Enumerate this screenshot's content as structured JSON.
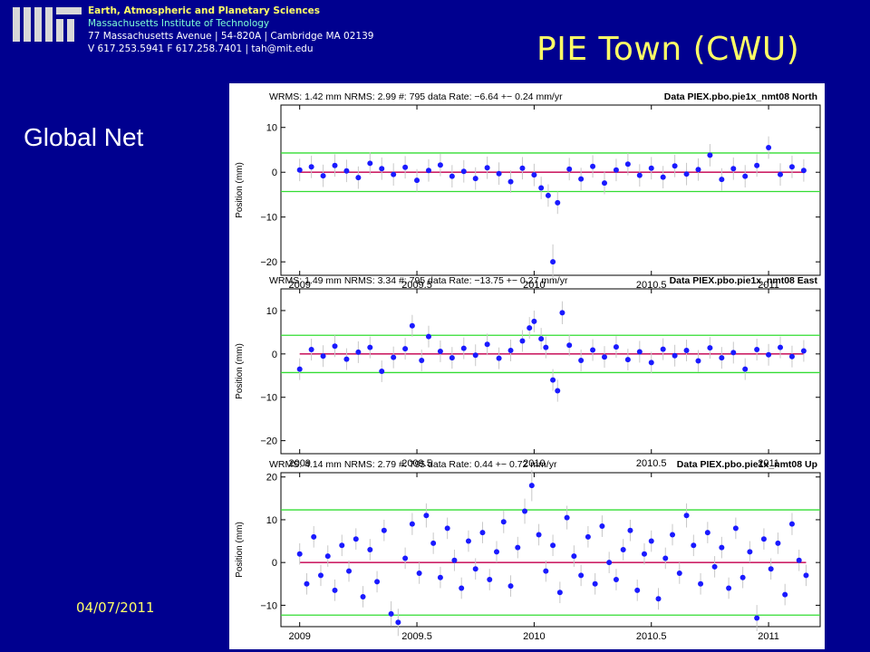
{
  "header": {
    "department": "Earth, Atmospheric and Planetary Sciences",
    "institute": "Massachusetts Institute of Technology",
    "address": "77 Massachusetts Avenue | 54-820A | Cambridge MA 02139",
    "contact": "V 617.253.5941 F 617.258.7401 | tah@mit.edu"
  },
  "slide": {
    "title": "PIE Town (CWU)",
    "subtitle": "Global Net",
    "date": "04/07/2011"
  },
  "colors": {
    "background": "#00008f",
    "title": "#ffff66",
    "points": "#1a1aff",
    "errorbars": "#c8c8c8",
    "bounds": "#33dd33",
    "fit": "#cc2266"
  },
  "chart_data": [
    {
      "type": "scatter",
      "header": "WRMS:   1.42 mm NRMS:  2.99 #:   795 data   Rate:    −6.64 +−    0.24 mm/yr",
      "label": "Data PIEX.pbo.pie1x_nmt08 North",
      "ylabel": "Position (mm)",
      "xlim": [
        2008.92,
        2011.22
      ],
      "ylim": [
        -23,
        15
      ],
      "xticks": [
        2009,
        2009.5,
        2010,
        2010.5,
        2011
      ],
      "xticklabels": [
        "2009",
        "2009.5",
        "2010",
        "2010.5",
        "2011"
      ],
      "yticks": [
        -20,
        -10,
        0,
        10
      ],
      "yticklabels": [
        "−20",
        "−10",
        "0",
        "10"
      ],
      "bounds": [
        -4.3,
        4.3
      ],
      "fit": [
        0,
        0
      ],
      "series": [
        {
          "x": [
            2009.0,
            2009.05,
            2009.1,
            2009.15,
            2009.2,
            2009.25,
            2009.3,
            2009.35,
            2009.4,
            2009.45,
            2009.5,
            2009.55,
            2009.6,
            2009.65,
            2009.7,
            2009.75,
            2009.8,
            2009.85,
            2009.9,
            2009.95,
            2010.0,
            2010.03,
            2010.06,
            2010.08,
            2010.1,
            2010.15,
            2010.2,
            2010.25,
            2010.3,
            2010.35,
            2010.4,
            2010.45,
            2010.5,
            2010.55,
            2010.6,
            2010.65,
            2010.7,
            2010.75,
            2010.8,
            2010.85,
            2010.9,
            2010.95,
            2011.0,
            2011.05,
            2011.1,
            2011.15
          ],
          "y": [
            0.5,
            1.2,
            -0.8,
            1.5,
            0.3,
            -1.2,
            2.0,
            0.8,
            -0.5,
            1.1,
            -1.8,
            0.4,
            1.6,
            -0.9,
            0.2,
            -1.4,
            1.0,
            -0.3,
            -2.1,
            0.9,
            -0.6,
            -3.5,
            -5.2,
            -20.0,
            -6.8,
            0.7,
            -1.5,
            1.3,
            -2.4,
            0.5,
            1.8,
            -0.7,
            0.9,
            -1.1,
            1.4,
            -0.4,
            0.6,
            3.8,
            -1.6,
            0.8,
            -0.9,
            1.5,
            5.5,
            -0.5,
            1.2,
            0.4
          ]
        }
      ]
    },
    {
      "type": "scatter",
      "header": "WRMS:   1.49 mm NRMS:  3.34 #:   795 data   Rate:   −13.75 +−    0.27 mm/yr",
      "label": "Data PIEX.pbo.pie1x_nmt08 East",
      "ylabel": "Position (mm)",
      "xlim": [
        2008.92,
        2011.22
      ],
      "ylim": [
        -23,
        15
      ],
      "xticks": [
        2009,
        2009.5,
        2010,
        2010.5,
        2011
      ],
      "xticklabels": [
        "2009",
        "2009.5",
        "2010",
        "2010.5",
        "2011"
      ],
      "yticks": [
        -20,
        -10,
        0,
        10
      ],
      "yticklabels": [
        "−20",
        "−10",
        "0",
        "10"
      ],
      "bounds": [
        -4.3,
        4.3
      ],
      "fit": [
        0,
        0
      ],
      "series": [
        {
          "x": [
            2009.0,
            2009.05,
            2009.1,
            2009.15,
            2009.2,
            2009.25,
            2009.3,
            2009.35,
            2009.4,
            2009.45,
            2009.48,
            2009.52,
            2009.55,
            2009.6,
            2009.65,
            2009.7,
            2009.75,
            2009.8,
            2009.85,
            2009.9,
            2009.95,
            2009.98,
            2010.0,
            2010.03,
            2010.05,
            2010.08,
            2010.1,
            2010.12,
            2010.15,
            2010.2,
            2010.25,
            2010.3,
            2010.35,
            2010.4,
            2010.45,
            2010.5,
            2010.55,
            2010.6,
            2010.65,
            2010.7,
            2010.75,
            2010.8,
            2010.85,
            2010.9,
            2010.95,
            2011.0,
            2011.05,
            2011.1,
            2011.15
          ],
          "y": [
            -3.5,
            1.0,
            -0.5,
            1.8,
            -1.2,
            0.4,
            1.5,
            -4.0,
            -0.8,
            1.2,
            6.5,
            -1.5,
            4.0,
            0.6,
            -0.9,
            1.3,
            -0.3,
            2.2,
            -1.0,
            0.8,
            3.0,
            6.0,
            7.5,
            3.5,
            1.5,
            -6.0,
            -8.5,
            9.5,
            2.0,
            -1.5,
            0.9,
            -0.7,
            1.6,
            -1.3,
            0.5,
            -2.0,
            1.1,
            -0.4,
            0.8,
            -1.6,
            1.4,
            -0.9,
            0.3,
            -3.5,
            1.0,
            -0.2,
            1.5,
            -0.6,
            0.7
          ]
        }
      ]
    },
    {
      "type": "scatter",
      "header": "WRMS:   4.14 mm NRMS:  2.79 #:   795 data   Rate:     0.44 +−    0.72 mm/yr",
      "label": "Data PIEX.pbo.pie1x_nmt08 Up",
      "ylabel": "Position (mm)",
      "xlim": [
        2008.92,
        2011.22
      ],
      "ylim": [
        -15,
        21
      ],
      "xticks": [
        2009,
        2009.5,
        2010,
        2010.5,
        2011
      ],
      "xticklabels": [
        "2009",
        "2009.5",
        "2010",
        "2010.5",
        "2011"
      ],
      "yticks": [
        -10,
        0,
        10,
        20
      ],
      "yticklabels": [
        "−10",
        "0",
        "10",
        "20"
      ],
      "bounds": [
        -12.3,
        12.3
      ],
      "fit": [
        0,
        0
      ],
      "series": [
        {
          "x": [
            2009.0,
            2009.03,
            2009.06,
            2009.09,
            2009.12,
            2009.15,
            2009.18,
            2009.21,
            2009.24,
            2009.27,
            2009.3,
            2009.33,
            2009.36,
            2009.39,
            2009.42,
            2009.45,
            2009.48,
            2009.51,
            2009.54,
            2009.57,
            2009.6,
            2009.63,
            2009.66,
            2009.69,
            2009.72,
            2009.75,
            2009.78,
            2009.81,
            2009.84,
            2009.87,
            2009.9,
            2009.93,
            2009.96,
            2009.99,
            2010.02,
            2010.05,
            2010.08,
            2010.11,
            2010.14,
            2010.17,
            2010.2,
            2010.23,
            2010.26,
            2010.29,
            2010.32,
            2010.35,
            2010.38,
            2010.41,
            2010.44,
            2010.47,
            2010.5,
            2010.53,
            2010.56,
            2010.59,
            2010.62,
            2010.65,
            2010.68,
            2010.71,
            2010.74,
            2010.77,
            2010.8,
            2010.83,
            2010.86,
            2010.89,
            2010.92,
            2010.95,
            2010.98,
            2011.01,
            2011.04,
            2011.07,
            2011.1,
            2011.13,
            2011.16
          ],
          "y": [
            2.0,
            -5.0,
            6.0,
            -3.0,
            1.5,
            -6.5,
            4.0,
            -2.0,
            5.5,
            -8.0,
            3.0,
            -4.5,
            7.5,
            -12.0,
            -14.0,
            1.0,
            9.0,
            -2.5,
            11.0,
            4.5,
            -3.5,
            8.0,
            0.5,
            -6.0,
            5.0,
            -1.5,
            7.0,
            -4.0,
            2.5,
            9.5,
            -5.5,
            3.5,
            12.0,
            18.0,
            6.5,
            -2.0,
            4.0,
            -7.0,
            10.5,
            1.5,
            -3.0,
            6.0,
            -5.0,
            8.5,
            0.0,
            -4.0,
            3.0,
            7.5,
            -6.5,
            2.0,
            5.0,
            -8.5,
            1.0,
            6.5,
            -2.5,
            11.0,
            4.0,
            -5.0,
            7.0,
            -1.0,
            3.5,
            -6.0,
            8.0,
            -3.5,
            2.5,
            -13.0,
            5.5,
            -1.5,
            4.5,
            -7.5,
            9.0,
            0.5,
            -3.0
          ]
        }
      ]
    }
  ]
}
